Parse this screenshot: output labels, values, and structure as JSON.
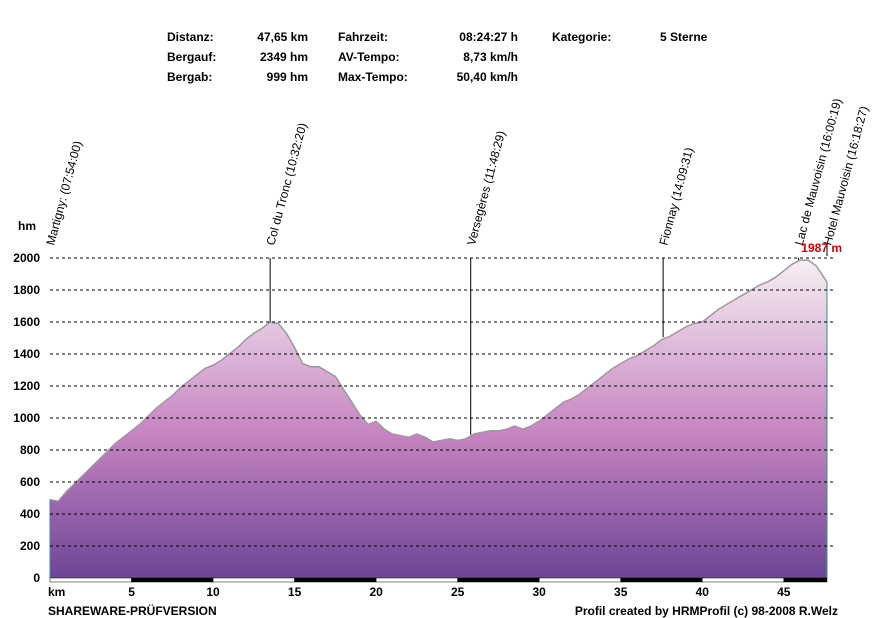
{
  "stats": {
    "distance_label": "Distanz:",
    "distance_value": "47,65 km",
    "ascent_label": "Bergauf:",
    "ascent_value": "2349 hm",
    "descent_label": "Bergab:",
    "descent_value": "999 hm",
    "time_label": "Fahrzeit:",
    "time_value": "08:24:27 h",
    "avg_label": "AV-Tempo:",
    "avg_value": "8,73 km/h",
    "max_label": "Max-Tempo:",
    "max_value": "50,40 km/h",
    "category_label": "Kategorie:",
    "category_value": "5 Sterne"
  },
  "footer": {
    "left": "SHAREWARE-PRÜFVERSION",
    "right": "Profil created by HRMProfil (c) 98-2008 R.Welz"
  },
  "chart_data": {
    "type": "area",
    "ylabel": "hm",
    "xlabel": "km",
    "xlim": [
      0,
      47.65
    ],
    "ylim": [
      0,
      2000
    ],
    "x_ticks": [
      5,
      10,
      15,
      20,
      25,
      30,
      35,
      40,
      45
    ],
    "y_ticks": [
      0,
      200,
      400,
      600,
      800,
      1000,
      1200,
      1400,
      1600,
      1800,
      2000
    ],
    "grid": "horizontal-dashed",
    "fill_gradient": [
      "#f6eef3",
      "#c584c0",
      "#6d4596"
    ],
    "line_color": "#9a9a9a",
    "max_label": "1987 m",
    "max_label_color": "#cc0000",
    "profile": {
      "x": [
        0,
        0.5,
        1,
        1.5,
        2,
        2.5,
        3,
        3.5,
        4,
        4.5,
        5,
        5.5,
        6,
        6.5,
        7,
        7.5,
        8,
        8.5,
        9,
        9.5,
        10,
        10.5,
        11,
        11.5,
        12,
        12.5,
        13,
        13.5,
        14,
        14.5,
        15,
        15.5,
        16,
        16.5,
        17,
        17.5,
        18,
        18.5,
        19,
        19.5,
        20,
        20.5,
        21,
        21.5,
        22,
        22.5,
        23,
        23.5,
        24,
        24.5,
        25,
        25.5,
        26,
        26.5,
        27,
        27.5,
        28,
        28.5,
        29,
        29.5,
        30,
        30.5,
        31,
        31.5,
        32,
        32.5,
        33,
        33.5,
        34,
        34.5,
        35,
        35.5,
        36,
        36.5,
        37,
        37.5,
        38,
        38.5,
        39,
        39.5,
        40,
        40.5,
        41,
        41.5,
        42,
        42.5,
        43,
        43.5,
        44,
        44.5,
        45,
        45.5,
        46,
        46.5,
        47,
        47.65
      ],
      "y": [
        490,
        480,
        540,
        590,
        640,
        690,
        740,
        790,
        840,
        880,
        920,
        960,
        1010,
        1060,
        1100,
        1140,
        1190,
        1230,
        1270,
        1310,
        1330,
        1360,
        1400,
        1440,
        1490,
        1530,
        1560,
        1600,
        1590,
        1530,
        1440,
        1340,
        1320,
        1320,
        1290,
        1260,
        1180,
        1100,
        1020,
        960,
        980,
        930,
        900,
        890,
        880,
        900,
        880,
        850,
        860,
        870,
        860,
        870,
        900,
        910,
        920,
        920,
        930,
        950,
        930,
        950,
        980,
        1020,
        1060,
        1100,
        1120,
        1150,
        1190,
        1230,
        1270,
        1310,
        1340,
        1370,
        1390,
        1420,
        1450,
        1490,
        1510,
        1540,
        1570,
        1590,
        1600,
        1640,
        1680,
        1710,
        1740,
        1770,
        1800,
        1830,
        1850,
        1880,
        1920,
        1960,
        1987,
        1987,
        1950,
        1850
      ]
    },
    "waypoints": [
      {
        "km": 0,
        "elev": 490,
        "label": "Martigny: (07:54:00)"
      },
      {
        "km": 13.5,
        "elev": 1600,
        "label": "Col du Tronc (10:32:20)"
      },
      {
        "km": 25.8,
        "elev": 895,
        "label": "Versegères (11:48:29)"
      },
      {
        "km": 37.6,
        "elev": 1505,
        "label": "Fionnay (14:09:31)"
      },
      {
        "km": 45.9,
        "elev": 1987,
        "label": "Lac de Mauvoisin (16:00:19)"
      },
      {
        "km": 47.65,
        "elev": 1850,
        "label": "Hotel Mauvoisin (16:18:27)"
      }
    ]
  }
}
